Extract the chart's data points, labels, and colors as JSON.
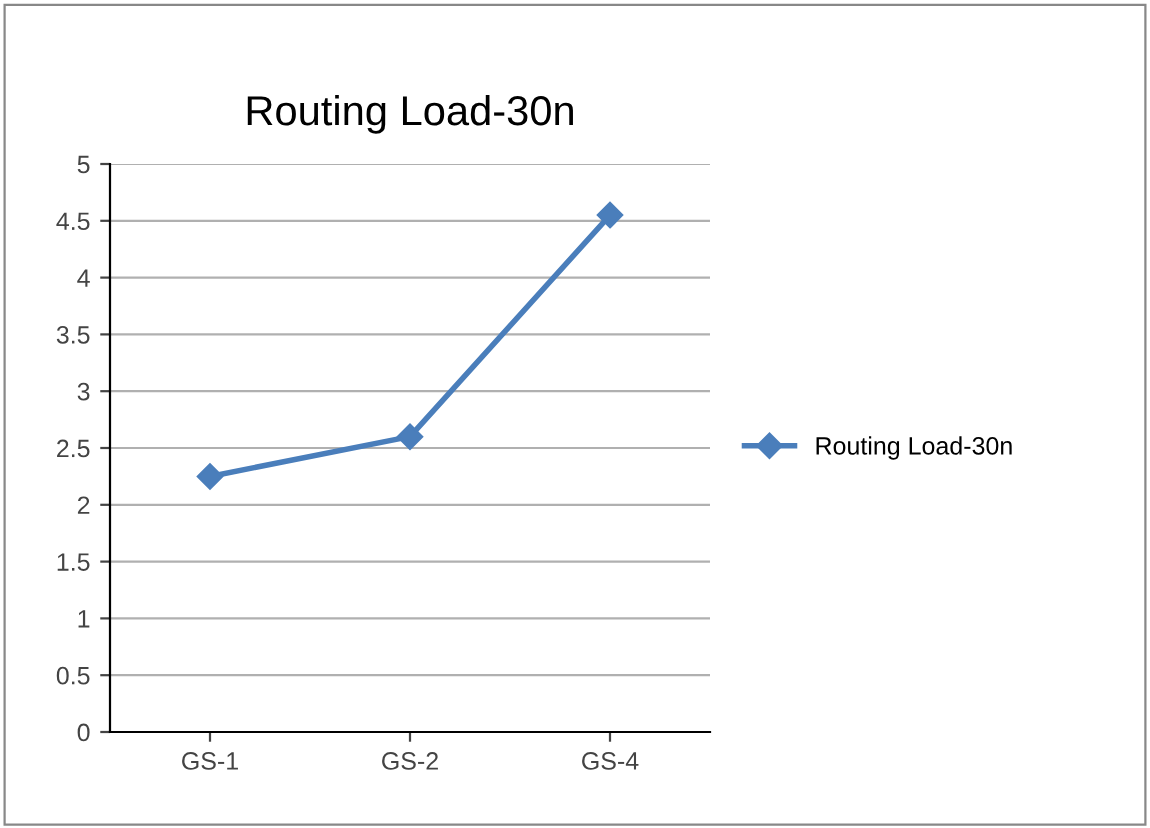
{
  "chart_data": {
    "type": "line",
    "title": "Routing Load-30n",
    "categories": [
      "GS-1",
      "GS-2",
      "GS-4"
    ],
    "series": [
      {
        "name": "Routing Load-30n",
        "color": "#4a7ebb",
        "values": [
          2.25,
          2.6,
          4.55
        ]
      }
    ],
    "ylim": [
      0,
      5
    ],
    "yticks": [
      0,
      0.5,
      1,
      1.5,
      2,
      2.5,
      3,
      3.5,
      4,
      4.5,
      5
    ],
    "grid": "y",
    "legend": "right",
    "marker": "diamond",
    "line_style": "solid"
  }
}
